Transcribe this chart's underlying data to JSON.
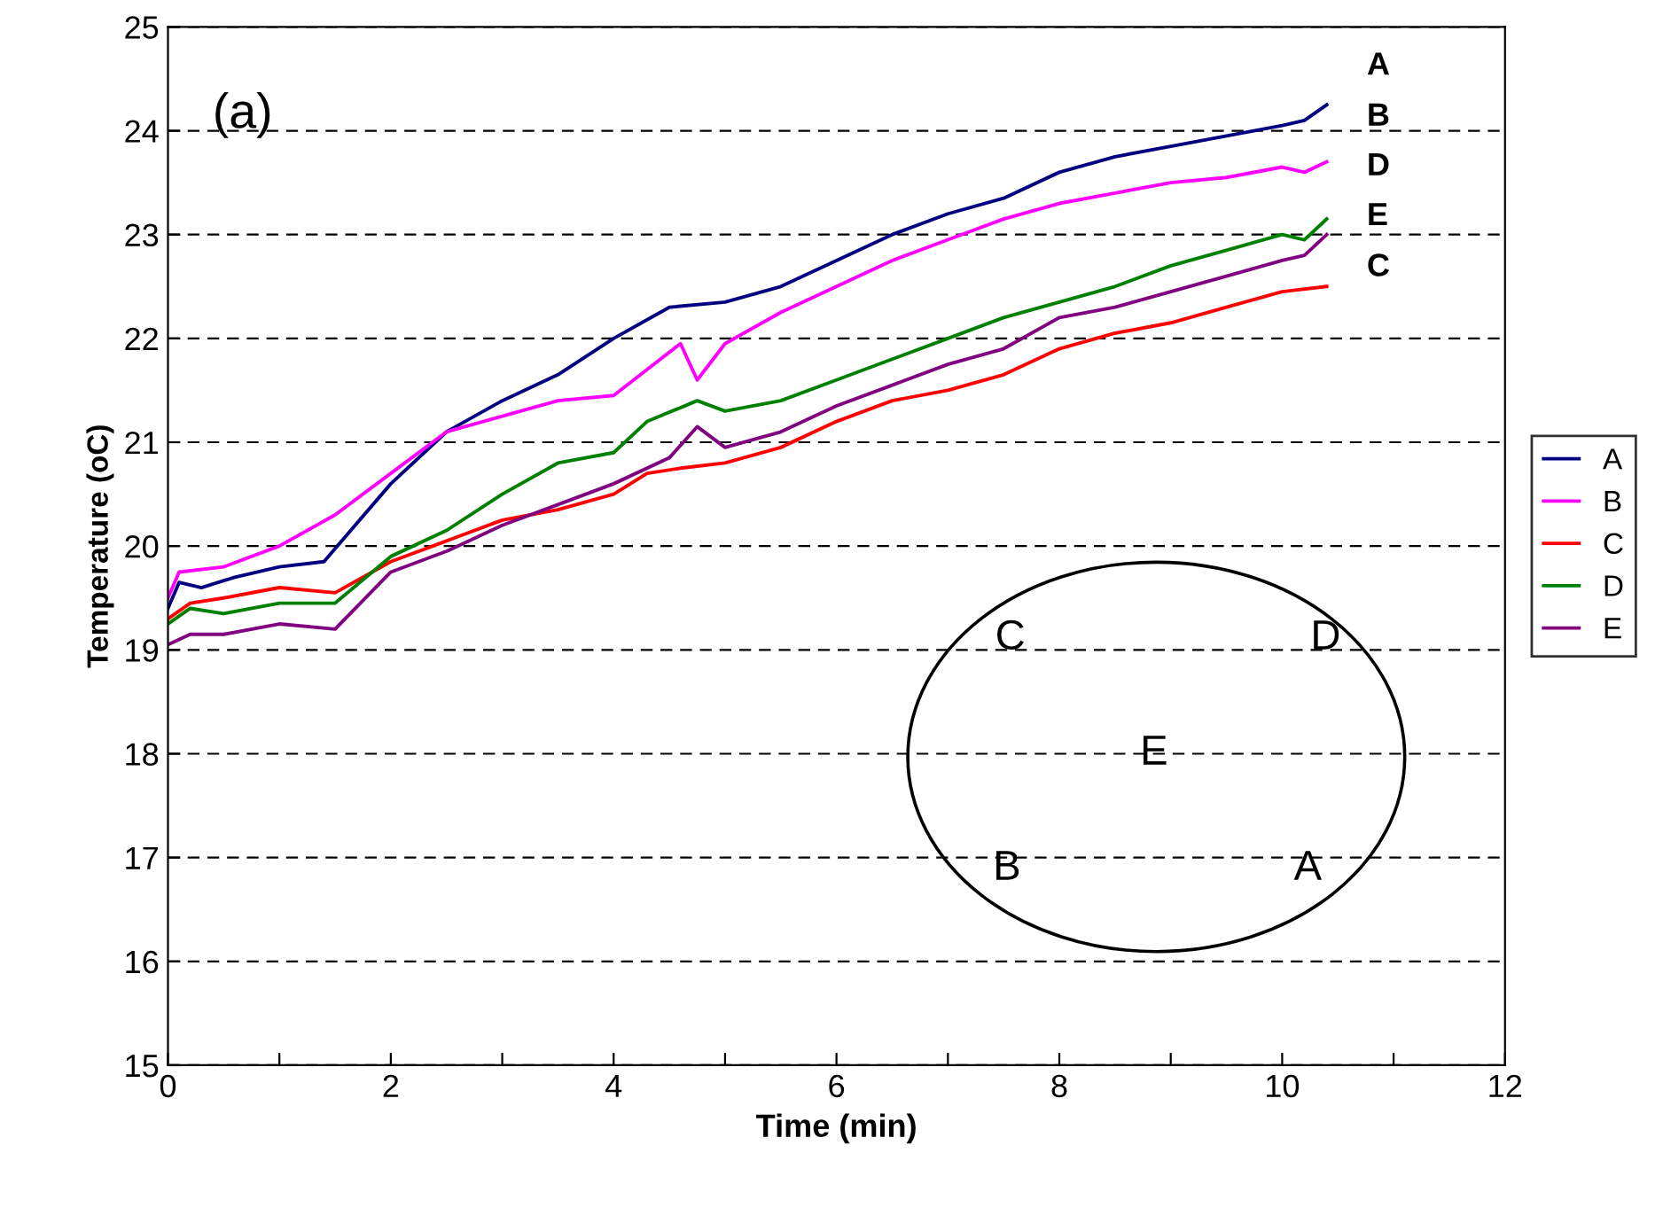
{
  "chart_data": {
    "type": "line",
    "xlabel": "Time (min)",
    "ylabel": "Temperature (oC)",
    "xlim": [
      0,
      12
    ],
    "ylim": [
      15,
      25
    ],
    "xticks": [
      0,
      {
        "value": 1,
        "label": null
      },
      2,
      {
        "value": 3,
        "label": null
      },
      4,
      {
        "value": 5,
        "label": null
      },
      6,
      {
        "value": 7,
        "label": null
      },
      8,
      {
        "value": 9,
        "label": null
      },
      10,
      {
        "value": 11,
        "label": null
      },
      12
    ],
    "yticks": [
      15,
      16,
      17,
      18,
      19,
      20,
      21,
      22,
      23,
      24,
      25
    ],
    "grid": "y",
    "legend": "right",
    "marker": "none",
    "line_style": "solid",
    "annotations": [
      "(a)",
      "A",
      "B",
      "D",
      "E",
      "C",
      "C",
      "D",
      "E",
      "B",
      "A"
    ],
    "series": [
      {
        "name": "A",
        "color": "#000080",
        "x": [
          0,
          0.1,
          0.3,
          0.6,
          1,
          1.4,
          2,
          2.5,
          3,
          3.5,
          4,
          4.5,
          5,
          5.5,
          6,
          6.5,
          7,
          7.5,
          8,
          8.5,
          9,
          9.5,
          10,
          10.2,
          10.4
        ],
        "values": [
          19.4,
          19.65,
          19.6,
          19.7,
          19.8,
          19.85,
          20.6,
          21.1,
          21.4,
          21.65,
          22.0,
          22.3,
          22.35,
          22.5,
          22.75,
          23.0,
          23.2,
          23.35,
          23.6,
          23.75,
          23.85,
          23.95,
          24.05,
          24.1,
          24.25
        ]
      },
      {
        "name": "B",
        "color": "#ff00ff",
        "x": [
          0,
          0.1,
          0.5,
          1,
          1.5,
          2,
          2.5,
          3,
          3.5,
          4,
          4.3,
          4.6,
          4.75,
          5,
          5.5,
          6,
          6.5,
          7,
          7.5,
          8,
          8.5,
          9,
          9.5,
          10,
          10.2,
          10.4
        ],
        "values": [
          19.5,
          19.75,
          19.8,
          20.0,
          20.3,
          20.7,
          21.1,
          21.25,
          21.4,
          21.45,
          21.7,
          21.95,
          21.6,
          21.95,
          22.25,
          22.5,
          22.75,
          22.95,
          23.15,
          23.3,
          23.4,
          23.5,
          23.55,
          23.65,
          23.6,
          23.7
        ]
      },
      {
        "name": "C",
        "color": "#ff0000",
        "x": [
          0,
          0.2,
          0.5,
          1,
          1.5,
          2,
          2.5,
          3,
          3.5,
          4,
          4.3,
          4.6,
          5,
          5.5,
          6,
          6.5,
          7,
          7.5,
          8,
          8.5,
          9,
          9.5,
          10,
          10.4
        ],
        "values": [
          19.3,
          19.45,
          19.5,
          19.6,
          19.55,
          19.85,
          20.05,
          20.25,
          20.35,
          20.5,
          20.7,
          20.75,
          20.8,
          20.95,
          21.2,
          21.4,
          21.5,
          21.65,
          21.9,
          22.05,
          22.15,
          22.3,
          22.45,
          22.5
        ]
      },
      {
        "name": "D",
        "color": "#008000",
        "x": [
          0,
          0.2,
          0.5,
          1,
          1.5,
          2,
          2.5,
          3,
          3.5,
          4,
          4.3,
          4.75,
          5,
          5.5,
          6,
          6.5,
          7,
          7.5,
          8,
          8.5,
          9,
          9.5,
          10,
          10.2,
          10.4
        ],
        "values": [
          19.25,
          19.4,
          19.35,
          19.45,
          19.45,
          19.9,
          20.15,
          20.5,
          20.8,
          20.9,
          21.2,
          21.4,
          21.3,
          21.4,
          21.6,
          21.8,
          22.0,
          22.2,
          22.35,
          22.5,
          22.7,
          22.85,
          23.0,
          22.95,
          23.15
        ]
      },
      {
        "name": "E",
        "color": "#800080",
        "x": [
          0,
          0.2,
          0.5,
          1,
          1.5,
          2,
          2.5,
          3,
          3.5,
          4,
          4.5,
          4.75,
          5,
          5.5,
          6,
          6.5,
          7,
          7.5,
          8,
          8.5,
          9,
          9.5,
          10,
          10.2,
          10.4
        ],
        "values": [
          19.05,
          19.15,
          19.15,
          19.25,
          19.2,
          19.75,
          19.95,
          20.2,
          20.4,
          20.6,
          20.85,
          21.15,
          20.95,
          21.1,
          21.35,
          21.55,
          21.75,
          21.9,
          22.2,
          22.3,
          22.45,
          22.6,
          22.75,
          22.8,
          23.0
        ]
      }
    ]
  }
}
